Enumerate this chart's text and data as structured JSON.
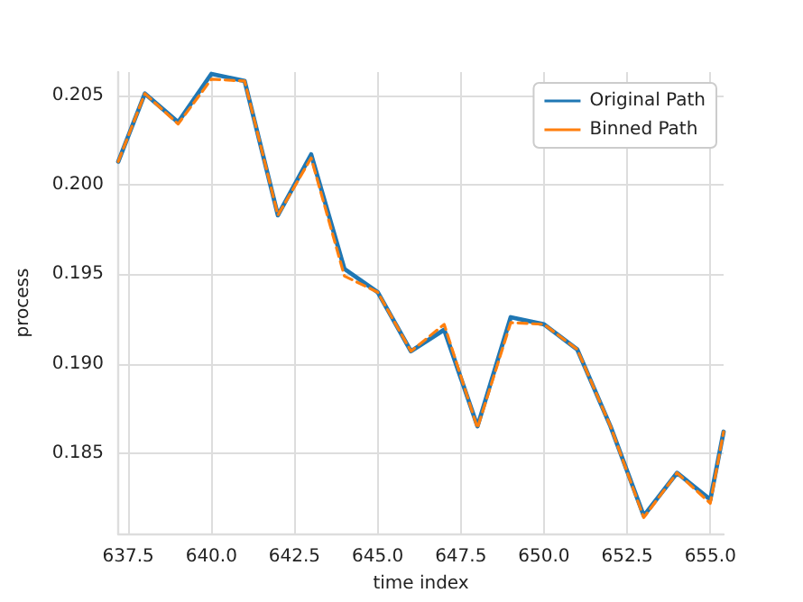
{
  "chart_data": {
    "type": "line",
    "xlabel": "time index",
    "ylabel": "process",
    "x": [
      637.2,
      638,
      639,
      640,
      641,
      642,
      643,
      644,
      645,
      646,
      647,
      648,
      649,
      650,
      651,
      652,
      653,
      654,
      655,
      655.4
    ],
    "series": [
      {
        "name": "Original Path",
        "color": "#1f77b4",
        "line_style": "solid",
        "values": [
          0.2013,
          0.2051,
          0.2035,
          0.2062,
          0.2058,
          0.1983,
          0.2017,
          0.1953,
          0.194,
          0.1907,
          0.1919,
          0.1865,
          0.1926,
          0.1922,
          0.1908,
          0.1865,
          0.1815,
          0.1839,
          0.1824,
          0.1862
        ]
      },
      {
        "name": "Binned Path",
        "color": "#ff7f0e",
        "line_style": "dashed",
        "values": [
          0.2013,
          0.2051,
          0.2034,
          0.2059,
          0.2058,
          0.1983,
          0.2015,
          0.1949,
          0.194,
          0.1907,
          0.1922,
          0.1864,
          0.1923,
          0.1922,
          0.1908,
          0.1865,
          0.1814,
          0.1839,
          0.1822,
          0.1862
        ]
      }
    ],
    "xlim": [
      637.2,
      655.4
    ],
    "xticks": [
      {
        "value": 637.5,
        "label": "637.5"
      },
      {
        "value": 640,
        "label": "640.0"
      },
      {
        "value": 642.5,
        "label": "642.5"
      },
      {
        "value": 645,
        "label": "645.0"
      },
      {
        "value": 647.5,
        "label": "647.5"
      },
      {
        "value": 650,
        "label": "650.0"
      },
      {
        "value": 652.5,
        "label": "652.5"
      },
      {
        "value": 655,
        "label": "655.0"
      }
    ],
    "ylim": [
      0.1805,
      0.2063
    ],
    "yticks": [
      {
        "value": 0.185,
        "label": "0.185"
      },
      {
        "value": 0.19,
        "label": "0.190"
      },
      {
        "value": 0.195,
        "label": "0.195"
      },
      {
        "value": 0.2,
        "label": "0.200"
      },
      {
        "value": 0.205,
        "label": "0.205"
      }
    ],
    "grid": true,
    "legend": "top right",
    "marker": "none"
  }
}
